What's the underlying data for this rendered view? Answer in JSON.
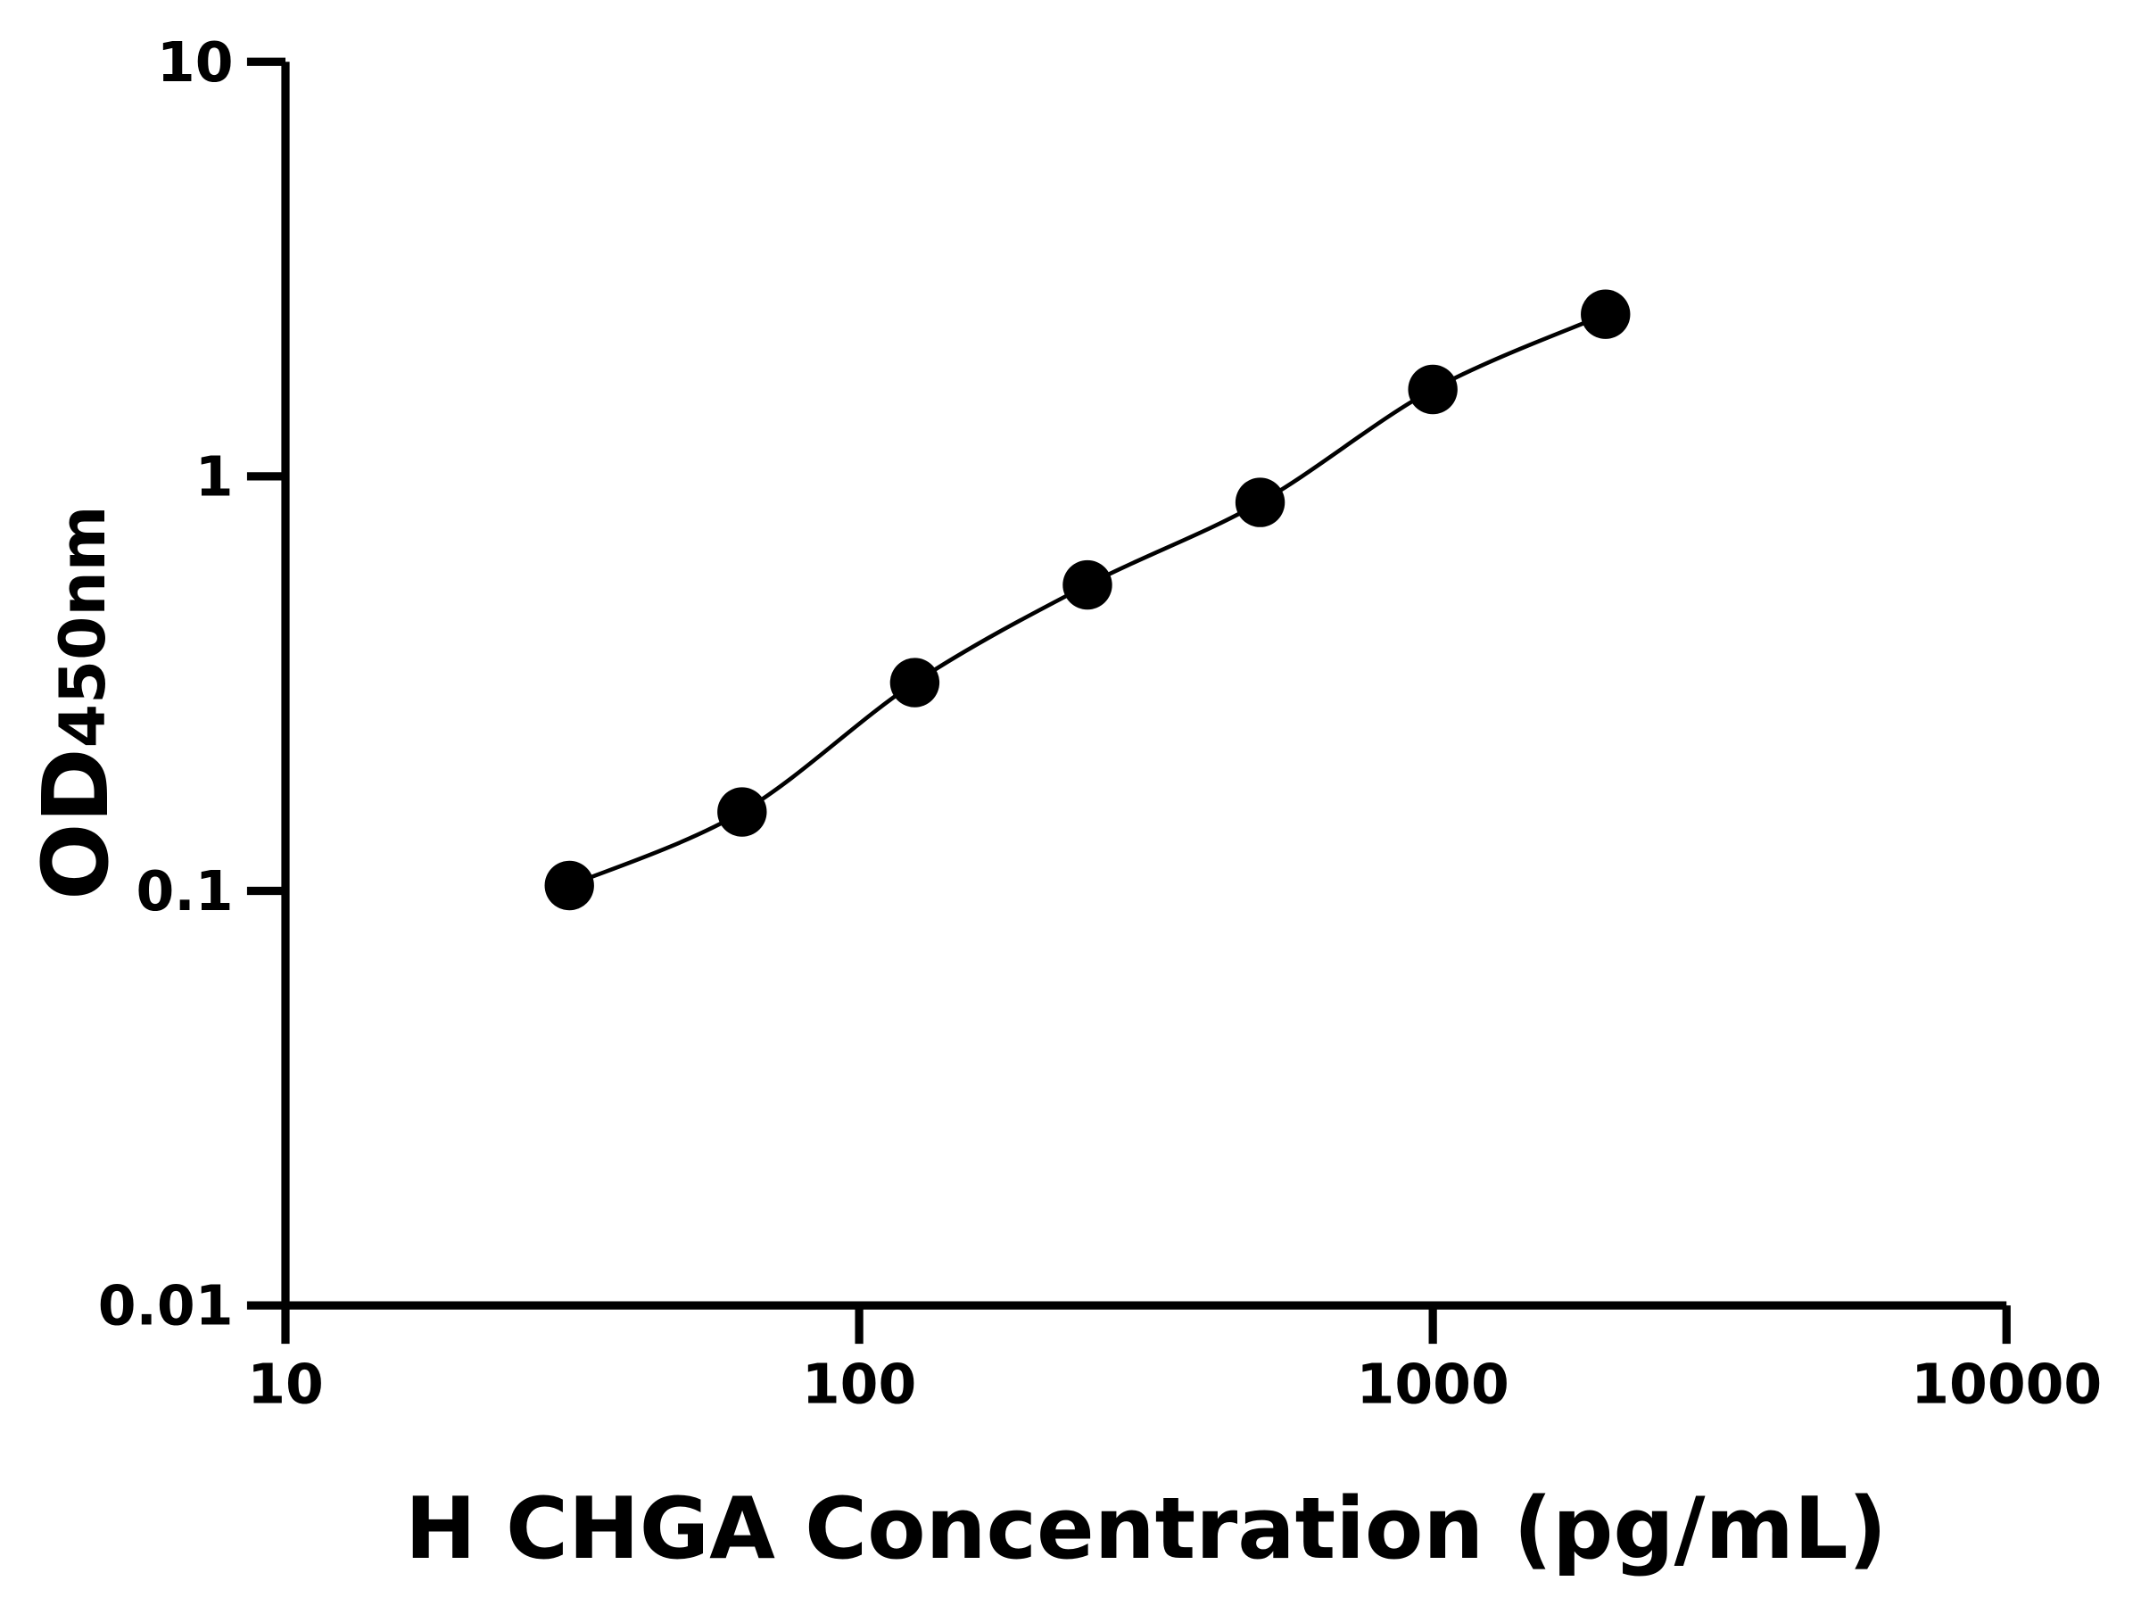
{
  "chart_data": {
    "type": "scatter",
    "title": "",
    "xlabel": "H CHGA Concentration (pg/mL)",
    "ylabel_main": "OD",
    "ylabel_sub": "450nm",
    "x_scale": "log",
    "y_scale": "log",
    "xlim": [
      10,
      10000
    ],
    "ylim": [
      0.01,
      10
    ],
    "x_ticks": [
      10,
      100,
      1000,
      10000
    ],
    "x_tick_labels": [
      "10",
      "100",
      "1000",
      "10000"
    ],
    "y_ticks": [
      0.01,
      0.1,
      1,
      10
    ],
    "y_tick_labels": [
      "0.01",
      "0.1",
      "1",
      "10"
    ],
    "grid": false,
    "legend": "none",
    "fit_curve": true,
    "color": "#000000",
    "series": [
      {
        "x": [
          31.25,
          62.5,
          125,
          250,
          500,
          1000,
          2000
        ],
        "y": [
          0.103,
          0.155,
          0.318,
          0.547,
          0.865,
          1.62,
          2.46
        ]
      }
    ]
  }
}
